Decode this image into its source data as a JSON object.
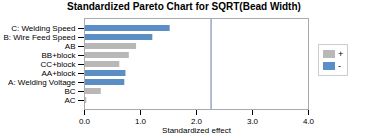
{
  "chart_data": {
    "type": "bar",
    "orientation": "horizontal",
    "title": "Standardized Pareto Chart for SQRT(Bead Width)",
    "xlabel": "Standardized effect",
    "categories": [
      "AC",
      "BC",
      "A: Welding Voltage",
      "AA+block",
      "CC+block",
      "BB+block",
      "AB",
      "B: Wire Feed Speed",
      "C: Welding Speed"
    ],
    "values": [
      0.04,
      0.3,
      0.72,
      0.74,
      0.63,
      0.8,
      0.93,
      1.22,
      1.53
    ],
    "colors": [
      "#b8b8b8",
      "#b8b8b8",
      "#5b8ec4",
      "#5b8ec4",
      "#b8b8b8",
      "#b8b8b8",
      "#b8b8b8",
      "#5b8ec4",
      "#5b8ec4"
    ],
    "reference_line": 2.26,
    "xlim": [
      0,
      4
    ],
    "xticks": [
      0,
      1,
      2,
      3,
      4
    ],
    "legend": "right",
    "legend_items": [
      {
        "name": "+",
        "color": "#b8b8b8"
      },
      {
        "name": "-",
        "color": "#5b8ec4"
      }
    ]
  }
}
